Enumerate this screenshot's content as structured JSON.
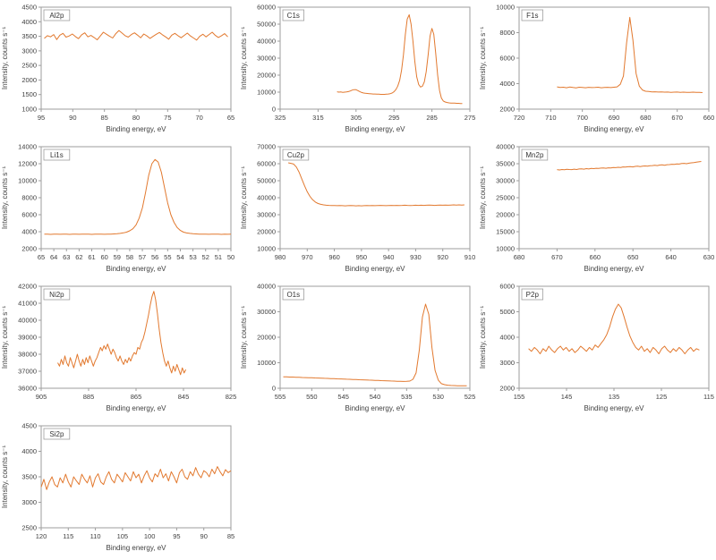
{
  "page": {
    "background": "#ffffff"
  },
  "chart_style": {
    "trace_color": "#E2792F",
    "axis_color": "#9e9e9e",
    "text_color": "#3f3f3f",
    "label_color": "#333333"
  },
  "chart_data": [
    {
      "type": "line",
      "label": "Al2p",
      "xlabel": "Binding energy, eV",
      "ylabel": "Intensity, counts s⁻¹",
      "xlim": [
        95,
        65
      ],
      "ylim": [
        1000,
        4500
      ],
      "xticks": [
        95,
        90,
        85,
        80,
        75,
        70,
        65
      ],
      "yticks": [
        1000,
        1500,
        2000,
        2500,
        3000,
        3500,
        4000,
        4500
      ],
      "x_start": 94.5,
      "x_end": 65.5,
      "y": [
        3430,
        3520,
        3480,
        3560,
        3390,
        3540,
        3600,
        3470,
        3510,
        3580,
        3490,
        3420,
        3550,
        3620,
        3480,
        3530,
        3460,
        3380,
        3510,
        3640,
        3570,
        3500,
        3440,
        3590,
        3700,
        3610,
        3520,
        3470,
        3560,
        3620,
        3540,
        3450,
        3580,
        3510,
        3430,
        3500,
        3570,
        3630,
        3550,
        3480,
        3400,
        3540,
        3600,
        3520,
        3450,
        3530,
        3610,
        3510,
        3440,
        3370,
        3500,
        3570,
        3480,
        3560,
        3640,
        3530,
        3460,
        3520,
        3590,
        3480
      ]
    },
    {
      "type": "line",
      "label": "C1s",
      "xlabel": "Binding energy, eV",
      "ylabel": "Intensity, counts s⁻¹",
      "xlim": [
        325,
        275
      ],
      "ylim": [
        0,
        60000
      ],
      "xticks": [
        325,
        315,
        305,
        295,
        285,
        275
      ],
      "yticks": [
        0,
        10000,
        20000,
        30000,
        40000,
        50000,
        60000
      ],
      "x_start": 310,
      "x_end": 277,
      "y": [
        10200,
        10000,
        10100,
        9900,
        10000,
        10100,
        10300,
        10700,
        11200,
        11500,
        11400,
        10900,
        10300,
        9800,
        9500,
        9300,
        9200,
        9100,
        9000,
        8900,
        8900,
        8800,
        8800,
        8700,
        8700,
        8700,
        8800,
        8900,
        9100,
        9500,
        10200,
        11500,
        13500,
        17000,
        23000,
        32000,
        44000,
        53000,
        55500,
        50000,
        40000,
        28000,
        19000,
        14500,
        13000,
        13500,
        16000,
        22000,
        32000,
        43000,
        47500,
        44000,
        33000,
        20000,
        11000,
        6500,
        4800,
        4200,
        3900,
        3700,
        3600,
        3500,
        3500,
        3400,
        3400,
        3300,
        3300
      ]
    },
    {
      "type": "line",
      "label": "F1s",
      "xlabel": "Binding energy, eV",
      "ylabel": "Intensity, counts s⁻¹",
      "xlim": [
        720,
        660
      ],
      "ylim": [
        2000,
        10000
      ],
      "xticks": [
        720,
        710,
        700,
        690,
        680,
        670,
        660
      ],
      "yticks": [
        2000,
        4000,
        6000,
        8000,
        10000
      ],
      "x_start": 708,
      "x_end": 662,
      "y": [
        3750,
        3700,
        3720,
        3680,
        3730,
        3700,
        3670,
        3720,
        3700,
        3680,
        3710,
        3690,
        3700,
        3720,
        3680,
        3700,
        3710,
        3690,
        3720,
        3750,
        3950,
        4600,
        7200,
        9200,
        7400,
        4800,
        3800,
        3500,
        3400,
        3380,
        3350,
        3360,
        3340,
        3350,
        3330,
        3340,
        3320,
        3330,
        3340,
        3320,
        3330,
        3310,
        3320,
        3330,
        3310,
        3320,
        3300
      ]
    },
    {
      "type": "line",
      "label": "Li1s",
      "xlabel": "Binding energy, eV",
      "ylabel": "Intensity, counts s⁻¹",
      "xlim": [
        65,
        50
      ],
      "ylim": [
        2000,
        14000
      ],
      "xticks": [
        65,
        64,
        63,
        62,
        61,
        60,
        59,
        58,
        57,
        56,
        55,
        54,
        53,
        52,
        51,
        50
      ],
      "yticks": [
        2000,
        4000,
        6000,
        8000,
        10000,
        12000,
        14000
      ],
      "x_start": 64.75,
      "x_end": 50,
      "y": [
        3720,
        3700,
        3680,
        3710,
        3700,
        3690,
        3720,
        3700,
        3680,
        3700,
        3710,
        3690,
        3700,
        3720,
        3700,
        3680,
        3700,
        3710,
        3700,
        3690,
        3700,
        3720,
        3740,
        3760,
        3800,
        3860,
        3950,
        4100,
        4350,
        4800,
        5600,
        6800,
        8600,
        10600,
        12000,
        12500,
        12200,
        11000,
        9200,
        7400,
        6000,
        5100,
        4500,
        4150,
        3950,
        3850,
        3800,
        3760,
        3740,
        3720,
        3700,
        3710,
        3690,
        3700,
        3720,
        3700,
        3680,
        3700,
        3690,
        3700
      ]
    },
    {
      "type": "line",
      "label": "Cu2p",
      "xlabel": "Binding energy, eV",
      "ylabel": "Intensity, counts s⁻¹",
      "xlim": [
        980,
        910
      ],
      "ylim": [
        10000,
        70000
      ],
      "xticks": [
        980,
        970,
        960,
        950,
        940,
        930,
        920,
        910
      ],
      "yticks": [
        10000,
        20000,
        30000,
        40000,
        50000,
        60000,
        70000
      ],
      "x_start": 977,
      "x_end": 912,
      "y": [
        60500,
        60200,
        59800,
        58000,
        55000,
        51000,
        47000,
        43500,
        40800,
        38800,
        37400,
        36600,
        36100,
        35800,
        35600,
        35500,
        35400,
        35400,
        35300,
        35400,
        35300,
        35200,
        35300,
        35400,
        35300,
        35200,
        35300,
        35200,
        35300,
        35400,
        35300,
        35400,
        35300,
        35400,
        35500,
        35400,
        35300,
        35400,
        35500,
        35400,
        35500,
        35400,
        35500,
        35600,
        35500,
        35400,
        35500,
        35600,
        35500,
        35600,
        35500,
        35600,
        35700,
        35600,
        35500,
        35600,
        35700,
        35600,
        35700,
        35600,
        35700,
        35800,
        35700,
        35800,
        35700,
        35800
      ]
    },
    {
      "type": "line",
      "label": "Mn2p",
      "xlabel": "Binding energy, eV",
      "ylabel": "Intensity, counts s⁻¹",
      "xlim": [
        680,
        630
      ],
      "ylim": [
        10000,
        40000
      ],
      "xticks": [
        680,
        670,
        660,
        650,
        640,
        630
      ],
      "yticks": [
        10000,
        15000,
        20000,
        25000,
        30000,
        35000,
        40000
      ],
      "x_start": 670,
      "x_end": 632,
      "y": [
        33250,
        33150,
        33300,
        33200,
        33350,
        33300,
        33250,
        33400,
        33300,
        33450,
        33500,
        33400,
        33550,
        33450,
        33600,
        33550,
        33650,
        33600,
        33700,
        33750,
        33650,
        33800,
        33750,
        33900,
        33850,
        33950,
        33900,
        34050,
        34000,
        34100,
        34150,
        34050,
        34200,
        34250,
        34150,
        34300,
        34350,
        34250,
        34400,
        34450,
        34550,
        34450,
        34600,
        34650,
        34550,
        34700,
        34750,
        34850,
        34800,
        34950,
        34900,
        35050,
        35100,
        35000,
        35150,
        35250,
        35350,
        35450,
        35550,
        35650
      ]
    },
    {
      "type": "line",
      "label": "Ni2p",
      "xlabel": "Binding energy, eV",
      "ylabel": "Intensity, counts s⁻¹",
      "xlim": [
        905,
        825
      ],
      "ylim": [
        36000,
        42000
      ],
      "xticks": [
        905,
        885,
        865,
        845,
        825
      ],
      "yticks": [
        36000,
        37000,
        38000,
        39000,
        40000,
        41000,
        42000
      ],
      "x_start": 898,
      "x_end": 844,
      "y": [
        37500,
        37300,
        37700,
        37400,
        37900,
        37500,
        37300,
        37800,
        37500,
        37200,
        37600,
        38000,
        37600,
        37300,
        37700,
        37400,
        37800,
        37500,
        37900,
        37600,
        37300,
        37600,
        37800,
        38100,
        38400,
        38200,
        38500,
        38300,
        38600,
        38300,
        38000,
        38300,
        38100,
        37800,
        37600,
        37900,
        37600,
        37400,
        37700,
        37500,
        37800,
        37600,
        37900,
        38100,
        38000,
        38400,
        38300,
        38700,
        38900,
        39300,
        39800,
        40300,
        40900,
        41400,
        41700,
        41200,
        40400,
        39500,
        38700,
        38100,
        37600,
        37300,
        37600,
        37200,
        36900,
        37300,
        37000,
        37400,
        37100,
        36800,
        37200,
        36900,
        37100
      ]
    },
    {
      "type": "line",
      "label": "O1s",
      "xlabel": "Binding energy, eV",
      "ylabel": "Intensity, counts s⁻¹",
      "xlim": [
        555,
        525
      ],
      "ylim": [
        0,
        40000
      ],
      "xticks": [
        555,
        550,
        545,
        540,
        535,
        530,
        525
      ],
      "yticks": [
        0,
        10000,
        20000,
        30000,
        40000
      ],
      "x_start": 554.5,
      "x_end": 525.5,
      "y": [
        4500,
        4450,
        4400,
        4380,
        4300,
        4280,
        4220,
        4180,
        4150,
        4100,
        4050,
        4000,
        3950,
        3900,
        3850,
        3800,
        3750,
        3700,
        3650,
        3600,
        3550,
        3500,
        3450,
        3400,
        3350,
        3300,
        3250,
        3200,
        3150,
        3100,
        3050,
        3000,
        2950,
        2900,
        2850,
        2800,
        2750,
        2700,
        2650,
        2700,
        2800,
        3500,
        6000,
        15000,
        28000,
        33000,
        29000,
        16000,
        7000,
        3200,
        1800,
        1400,
        1200,
        1100,
        1050,
        1000,
        1000,
        950,
        950
      ]
    },
    {
      "type": "line",
      "label": "P2p",
      "xlabel": "Binding energy, eV",
      "ylabel": "Intensity, counts s⁻¹",
      "xlim": [
        155,
        115
      ],
      "ylim": [
        2000,
        6000
      ],
      "xticks": [
        155,
        145,
        135,
        125,
        115
      ],
      "yticks": [
        2000,
        3000,
        4000,
        5000,
        6000
      ],
      "x_start": 153,
      "x_end": 117,
      "y": [
        3550,
        3450,
        3600,
        3500,
        3350,
        3550,
        3450,
        3650,
        3500,
        3400,
        3550,
        3650,
        3500,
        3600,
        3450,
        3550,
        3400,
        3500,
        3650,
        3550,
        3450,
        3600,
        3500,
        3700,
        3600,
        3750,
        3900,
        4100,
        4400,
        4800,
        5100,
        5300,
        5150,
        4800,
        4400,
        4050,
        3800,
        3600,
        3500,
        3650,
        3450,
        3550,
        3400,
        3600,
        3500,
        3350,
        3550,
        3650,
        3500,
        3400,
        3550,
        3450,
        3600,
        3500,
        3350,
        3500,
        3600,
        3450,
        3550,
        3500
      ]
    },
    {
      "type": "line",
      "label": "Si2p",
      "xlabel": "Binding energy, eV",
      "ylabel": "Intensity, counts s⁻¹",
      "xlim": [
        120,
        85
      ],
      "ylim": [
        2500,
        4500
      ],
      "xticks": [
        120,
        115,
        110,
        105,
        100,
        95,
        90,
        85
      ],
      "yticks": [
        2500,
        3000,
        3500,
        4000,
        4500
      ],
      "x_start": 120,
      "x_end": 85,
      "y": [
        3300,
        3450,
        3250,
        3400,
        3500,
        3350,
        3300,
        3480,
        3380,
        3550,
        3400,
        3300,
        3500,
        3420,
        3350,
        3550,
        3450,
        3380,
        3520,
        3300,
        3480,
        3560,
        3400,
        3350,
        3500,
        3600,
        3450,
        3380,
        3550,
        3480,
        3400,
        3580,
        3500,
        3420,
        3600,
        3480,
        3550,
        3380,
        3520,
        3620,
        3480,
        3400,
        3560,
        3500,
        3650,
        3480,
        3560,
        3420,
        3600,
        3500,
        3380,
        3580,
        3650,
        3500,
        3450,
        3600,
        3520,
        3680,
        3550,
        3480,
        3620,
        3580,
        3500,
        3650,
        3560,
        3700,
        3600,
        3520,
        3640,
        3580,
        3620
      ]
    }
  ]
}
